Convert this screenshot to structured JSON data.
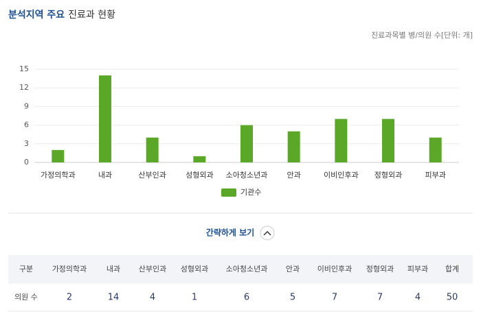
{
  "title_highlight": "분석지역 주요",
  "title": "진료과 현황",
  "subtitle": "진료과목별 병/의원 수[단위: 개]",
  "chart_data": {
    "type": "bar",
    "categories": [
      "가정의학과",
      "내과",
      "산부인과",
      "성형외과",
      "소아청소년과",
      "안과",
      "이비인후과",
      "정형외과",
      "피부과"
    ],
    "series": [
      {
        "name": "기관수",
        "color": "#5ba829",
        "values": [
          2,
          14,
          4,
          1,
          6,
          5,
          7,
          7,
          4
        ]
      }
    ],
    "ylim": [
      0,
      15
    ],
    "yticks": [
      0,
      3,
      6,
      9,
      12,
      15
    ],
    "grid": true,
    "legend": "bottom"
  },
  "toggle": "간략하게 보기",
  "table": {
    "header": [
      "구분",
      "가정의학과",
      "내과",
      "산부인과",
      "성형외과",
      "소아청소년과",
      "안과",
      "이비인후과",
      "정형외과",
      "피부과",
      "합계"
    ],
    "rows": [
      [
        "의원 수",
        "2",
        "14",
        "4",
        "1",
        "6",
        "5",
        "7",
        "7",
        "4",
        "50"
      ]
    ]
  }
}
